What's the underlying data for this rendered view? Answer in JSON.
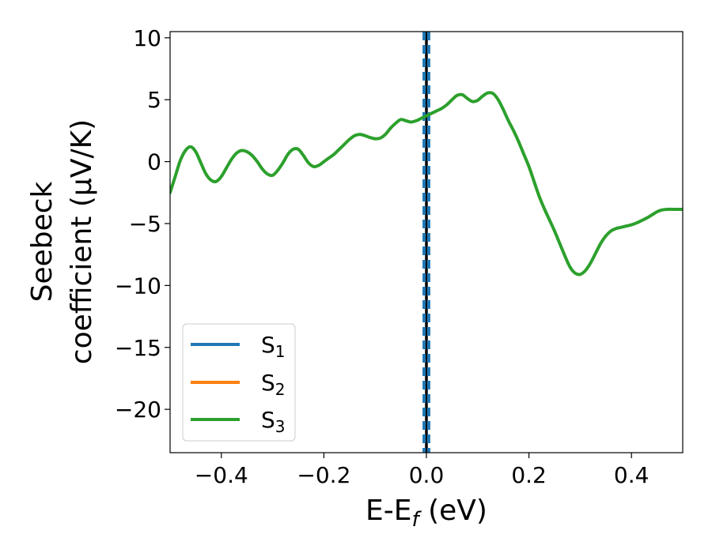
{
  "chart_data": {
    "type": "line",
    "xlabel": "E-E",
    "xlabel_sub": "f",
    "xlabel_unit": " (eV)",
    "ylabel_line1": "Seebeck",
    "ylabel_line2": "coefficient  (μV/K)",
    "xlim": [
      -0.5,
      0.5
    ],
    "ylim": [
      -23.5,
      10.5
    ],
    "xticks": [
      -0.4,
      -0.2,
      0.0,
      0.2,
      0.4
    ],
    "xtick_labels": [
      "−0.4",
      "−0.2",
      "0.0",
      "0.2",
      "0.4"
    ],
    "yticks": [
      10,
      5,
      0,
      -5,
      -10,
      -15,
      -20
    ],
    "ytick_labels": [
      "10",
      "5",
      "0",
      "−5",
      "−10",
      "−15",
      "−20"
    ],
    "grid": false,
    "legend_position": "lower-left",
    "series": [
      {
        "name": "S",
        "name_sub": "1",
        "color": "#1f77b4",
        "x": [],
        "y": []
      },
      {
        "name": "S",
        "name_sub": "2",
        "color": "#ff7f0e",
        "x": [],
        "y": []
      },
      {
        "name": "S",
        "name_sub": "3",
        "color": "#2ca02c",
        "x": [
          -0.5,
          -0.49,
          -0.48,
          -0.47,
          -0.46,
          -0.45,
          -0.44,
          -0.43,
          -0.42,
          -0.41,
          -0.4,
          -0.39,
          -0.38,
          -0.37,
          -0.36,
          -0.35,
          -0.34,
          -0.33,
          -0.32,
          -0.31,
          -0.3,
          -0.29,
          -0.28,
          -0.27,
          -0.26,
          -0.25,
          -0.24,
          -0.23,
          -0.22,
          -0.21,
          -0.2,
          -0.19,
          -0.18,
          -0.17,
          -0.16,
          -0.15,
          -0.14,
          -0.13,
          -0.12,
          -0.11,
          -0.1,
          -0.09,
          -0.08,
          -0.07,
          -0.06,
          -0.05,
          -0.04,
          -0.03,
          -0.02,
          -0.01,
          0.0,
          0.01,
          0.02,
          0.03,
          0.04,
          0.05,
          0.06,
          0.07,
          0.08,
          0.09,
          0.1,
          0.11,
          0.12,
          0.13,
          0.14,
          0.15,
          0.16,
          0.17,
          0.18,
          0.19,
          0.2,
          0.21,
          0.22,
          0.23,
          0.24,
          0.25,
          0.26,
          0.27,
          0.28,
          0.29,
          0.3,
          0.31,
          0.32,
          0.33,
          0.34,
          0.35,
          0.36,
          0.37,
          0.38,
          0.39,
          0.4,
          0.41,
          0.42,
          0.43,
          0.44,
          0.45,
          0.46,
          0.47,
          0.48,
          0.49,
          0.5
        ],
        "y": [
          -2.5,
          -1.2,
          0.1,
          0.9,
          1.2,
          0.8,
          -0.1,
          -1.0,
          -1.5,
          -1.6,
          -1.2,
          -0.5,
          0.2,
          0.7,
          0.9,
          0.8,
          0.5,
          0.0,
          -0.6,
          -1.0,
          -1.1,
          -0.7,
          -0.1,
          0.6,
          1.0,
          1.0,
          0.5,
          -0.1,
          -0.4,
          -0.3,
          0.0,
          0.3,
          0.6,
          1.0,
          1.4,
          1.8,
          2.1,
          2.2,
          2.1,
          1.95,
          1.85,
          1.9,
          2.2,
          2.7,
          3.1,
          3.4,
          3.3,
          3.2,
          3.3,
          3.5,
          3.7,
          3.9,
          4.1,
          4.3,
          4.6,
          5.0,
          5.35,
          5.4,
          5.1,
          4.85,
          4.95,
          5.3,
          5.55,
          5.5,
          5.0,
          4.2,
          3.3,
          2.5,
          1.6,
          0.6,
          -0.4,
          -1.6,
          -2.8,
          -3.8,
          -4.7,
          -5.6,
          -6.6,
          -7.6,
          -8.5,
          -9.0,
          -9.1,
          -8.8,
          -8.2,
          -7.4,
          -6.6,
          -6.0,
          -5.6,
          -5.4,
          -5.3,
          -5.2,
          -5.1,
          -4.95,
          -4.75,
          -4.55,
          -4.3,
          -4.05,
          -3.9,
          -3.85,
          -3.85,
          -3.85,
          -3.85
        ]
      }
    ],
    "vlines": [
      {
        "x": 0.0,
        "color": "#000000",
        "style": "solid"
      },
      {
        "x": -0.0045,
        "color": "#1f77b4",
        "style": "dashed"
      },
      {
        "x": 0.0045,
        "color": "#1f77b4",
        "style": "dashed"
      }
    ]
  }
}
